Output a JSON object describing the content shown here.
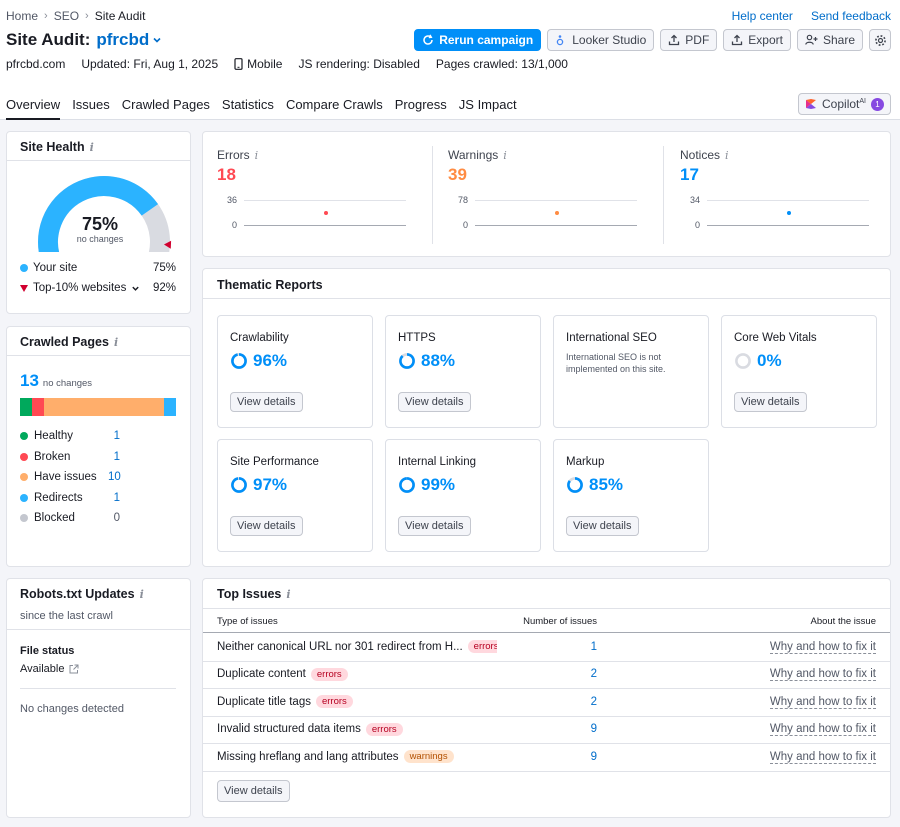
{
  "breadcrumb": [
    "Home",
    "SEO",
    "Site Audit"
  ],
  "top_links": {
    "help": "Help center",
    "feedback": "Send feedback"
  },
  "title": {
    "prefix": "Site Audit:",
    "project": "pfrcbd"
  },
  "actions": {
    "rerun": "Rerun campaign",
    "looker": "Looker Studio",
    "pdf": "PDF",
    "export": "Export",
    "share": "Share"
  },
  "meta": {
    "domain": "pfrcbd.com",
    "updated": "Updated: Fri, Aug 1, 2025",
    "device": "Mobile",
    "js": "JS rendering: Disabled",
    "pages": "Pages crawled: 13/1,000"
  },
  "tabs": [
    "Overview",
    "Issues",
    "Crawled Pages",
    "Statistics",
    "Compare Crawls",
    "Progress",
    "JS Impact"
  ],
  "copilot": {
    "label": "Copilot",
    "sup": "AI",
    "count": "1"
  },
  "site_health": {
    "title": "Site Health",
    "value": "75%",
    "sub": "no changes",
    "score": 75,
    "top10_score": 92,
    "your_site_label": "Your site",
    "your_site_value": "75%",
    "top10_label": "Top-10% websites",
    "top10_value": "92%"
  },
  "stats": [
    {
      "label": "Errors",
      "value": "18",
      "color": "#ff4953",
      "tick_top": "36",
      "tick_bottom": "0"
    },
    {
      "label": "Warnings",
      "value": "39",
      "color": "#ff8c43",
      "tick_top": "78",
      "tick_bottom": "0"
    },
    {
      "label": "Notices",
      "value": "17",
      "color": "#008ff8",
      "tick_top": "34",
      "tick_bottom": "0"
    }
  ],
  "thematic": {
    "title": "Thematic Reports",
    "view_details": "View details",
    "reports": [
      {
        "name": "Crawlability",
        "pct": "96%",
        "value": 96
      },
      {
        "name": "HTTPS",
        "pct": "88%",
        "value": 88
      },
      {
        "name": "International SEO",
        "note": "International SEO is not implemented on this site."
      },
      {
        "name": "Core Web Vitals",
        "pct": "0%",
        "value": 0
      },
      {
        "name": "Site Performance",
        "pct": "97%",
        "value": 97
      },
      {
        "name": "Internal Linking",
        "pct": "99%",
        "value": 99
      },
      {
        "name": "Markup",
        "pct": "85%",
        "value": 85
      }
    ]
  },
  "crawled": {
    "title": "Crawled Pages",
    "count": "13",
    "sub": "no changes",
    "items": [
      {
        "label": "Healthy",
        "value": "1",
        "color": "#00a95c"
      },
      {
        "label": "Broken",
        "value": "1",
        "color": "#ff4953"
      },
      {
        "label": "Have issues",
        "value": "10",
        "color": "#ffae6b"
      },
      {
        "label": "Redirects",
        "value": "1",
        "color": "#2bb3ff"
      },
      {
        "label": "Blocked",
        "value": "0",
        "color": "#c4c7cf"
      }
    ]
  },
  "robots": {
    "title": "Robots.txt Updates",
    "sub": "since the last crawl",
    "file_status": "File status",
    "available": "Available",
    "no_changes": "No changes detected"
  },
  "top_issues": {
    "title": "Top Issues",
    "col_type": "Type of issues",
    "col_num": "Number of issues",
    "col_about": "About the issue",
    "fix_label": "Why and how to fix it",
    "view_details": "View details",
    "rows": [
      {
        "text": "Neither canonical URL nor 301 redirect from H...",
        "badge": "errors",
        "kind": "err",
        "count": "1"
      },
      {
        "text": "Duplicate content",
        "badge": "errors",
        "kind": "err",
        "count": "2"
      },
      {
        "text": "Duplicate title tags",
        "badge": "errors",
        "kind": "err",
        "count": "2"
      },
      {
        "text": "Invalid structured data items",
        "badge": "errors",
        "kind": "err",
        "count": "9"
      },
      {
        "text": "Missing hreflang and lang attributes",
        "badge": "warnings",
        "kind": "warn",
        "count": "9"
      }
    ]
  }
}
